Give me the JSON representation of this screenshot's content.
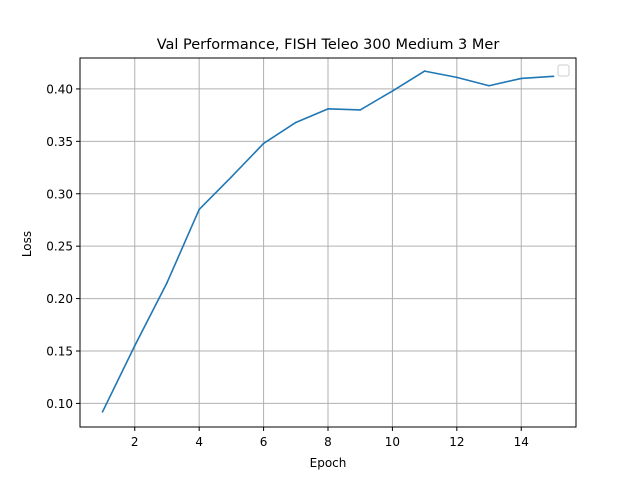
{
  "chart_data": {
    "type": "line",
    "title": "Val Performance, FISH Teleo 300 Medium 3 Mer",
    "xlabel": "Epoch",
    "ylabel": "Loss",
    "x": [
      1,
      2,
      3,
      4,
      5,
      6,
      7,
      8,
      9,
      10,
      11,
      12,
      13,
      14,
      15
    ],
    "series": [
      {
        "values": [
          0.092,
          0.155,
          0.215,
          0.285,
          0.316,
          0.348,
          0.368,
          0.381,
          0.38,
          0.398,
          0.417,
          0.411,
          0.403,
          0.41,
          0.412
        ],
        "color": "#1f77b4"
      }
    ],
    "xlim": [
      0.3,
      15.7
    ],
    "ylim": [
      0.0775,
      0.4295
    ],
    "xticks": [
      2,
      4,
      6,
      8,
      10,
      12,
      14
    ],
    "yticks": [
      0.1,
      0.15,
      0.2,
      0.25,
      0.3,
      0.35,
      0.4
    ],
    "xtick_labels": [
      "2",
      "4",
      "6",
      "8",
      "10",
      "12",
      "14"
    ],
    "ytick_labels": [
      "0.10",
      "0.15",
      "0.20",
      "0.25",
      "0.30",
      "0.35",
      "0.40"
    ],
    "grid": true,
    "legend": "top-right, empty"
  }
}
